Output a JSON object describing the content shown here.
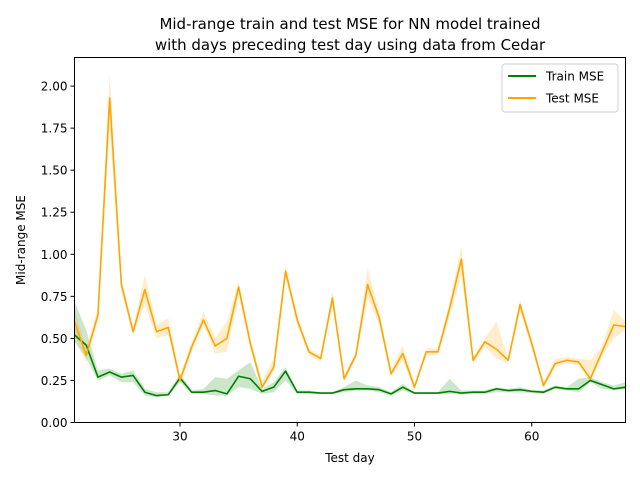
{
  "chart_data": {
    "type": "line",
    "title_line1": "Mid-range train and test MSE for NN model trained",
    "title_line2": "with days preceding test day using data from Cedar",
    "xlabel": "Test day",
    "ylabel": "Mid-range MSE",
    "xlim": [
      21,
      68
    ],
    "ylim": [
      0,
      2.17
    ],
    "xticks": [
      30,
      40,
      50,
      60
    ],
    "yticks": [
      0.0,
      0.25,
      0.5,
      0.75,
      1.0,
      1.25,
      1.5,
      1.75,
      2.0
    ],
    "ytick_labels": [
      "0.00",
      "0.25",
      "0.50",
      "0.75",
      "1.00",
      "1.25",
      "1.50",
      "1.75",
      "2.00"
    ],
    "legend_position": "top-right",
    "x": [
      21,
      22,
      23,
      24,
      25,
      26,
      27,
      28,
      29,
      30,
      31,
      32,
      33,
      34,
      35,
      36,
      37,
      38,
      39,
      40,
      41,
      42,
      43,
      44,
      45,
      46,
      47,
      48,
      49,
      50,
      51,
      52,
      53,
      54,
      55,
      56,
      57,
      58,
      59,
      60,
      61,
      62,
      63,
      64,
      65,
      66,
      67,
      68
    ],
    "series": [
      {
        "name": "Train MSE",
        "color": "#008000",
        "values": [
          0.52,
          0.46,
          0.27,
          0.3,
          0.27,
          0.28,
          0.18,
          0.16,
          0.165,
          0.265,
          0.18,
          0.18,
          0.19,
          0.17,
          0.275,
          0.26,
          0.185,
          0.21,
          0.305,
          0.18,
          0.18,
          0.175,
          0.175,
          0.195,
          0.2,
          0.2,
          0.195,
          0.17,
          0.21,
          0.175,
          0.175,
          0.175,
          0.185,
          0.175,
          0.18,
          0.18,
          0.2,
          0.19,
          0.195,
          0.185,
          0.18,
          0.21,
          0.2,
          0.2,
          0.25,
          0.225,
          0.2,
          0.21
        ],
        "lower": [
          0.48,
          0.38,
          0.25,
          0.28,
          0.24,
          0.24,
          0.16,
          0.15,
          0.16,
          0.24,
          0.17,
          0.17,
          0.16,
          0.16,
          0.21,
          0.2,
          0.17,
          0.18,
          0.25,
          0.17,
          0.17,
          0.17,
          0.17,
          0.18,
          0.19,
          0.19,
          0.18,
          0.16,
          0.19,
          0.17,
          0.17,
          0.17,
          0.17,
          0.17,
          0.17,
          0.17,
          0.18,
          0.18,
          0.18,
          0.175,
          0.17,
          0.2,
          0.19,
          0.18,
          0.24,
          0.2,
          0.19,
          0.2
        ],
        "upper": [
          0.72,
          0.55,
          0.31,
          0.32,
          0.29,
          0.31,
          0.2,
          0.18,
          0.18,
          0.29,
          0.19,
          0.2,
          0.27,
          0.26,
          0.31,
          0.36,
          0.2,
          0.24,
          0.33,
          0.19,
          0.19,
          0.18,
          0.18,
          0.21,
          0.25,
          0.22,
          0.21,
          0.18,
          0.23,
          0.18,
          0.18,
          0.18,
          0.26,
          0.19,
          0.19,
          0.19,
          0.21,
          0.2,
          0.21,
          0.195,
          0.19,
          0.22,
          0.21,
          0.26,
          0.27,
          0.24,
          0.22,
          0.24
        ]
      },
      {
        "name": "Test MSE",
        "color": "#ffa500",
        "values": [
          0.6,
          0.4,
          0.64,
          1.93,
          0.82,
          0.54,
          0.79,
          0.54,
          0.565,
          0.25,
          0.45,
          0.61,
          0.455,
          0.5,
          0.805,
          0.47,
          0.21,
          0.33,
          0.9,
          0.61,
          0.42,
          0.38,
          0.74,
          0.26,
          0.4,
          0.82,
          0.62,
          0.29,
          0.41,
          0.21,
          0.42,
          0.42,
          0.68,
          0.97,
          0.37,
          0.48,
          0.435,
          0.37,
          0.7,
          0.47,
          0.22,
          0.35,
          0.37,
          0.36,
          0.26,
          0.42,
          0.58,
          0.57
        ],
        "lower": [
          0.52,
          0.36,
          0.6,
          1.75,
          0.78,
          0.52,
          0.7,
          0.5,
          0.52,
          0.23,
          0.42,
          0.58,
          0.41,
          0.42,
          0.75,
          0.44,
          0.2,
          0.3,
          0.86,
          0.58,
          0.4,
          0.36,
          0.7,
          0.24,
          0.38,
          0.74,
          0.58,
          0.27,
          0.37,
          0.19,
          0.4,
          0.4,
          0.63,
          0.88,
          0.35,
          0.45,
          0.38,
          0.35,
          0.66,
          0.44,
          0.2,
          0.33,
          0.35,
          0.34,
          0.24,
          0.39,
          0.5,
          0.55
        ],
        "upper": [
          0.68,
          0.44,
          0.68,
          2.07,
          0.86,
          0.56,
          0.88,
          0.58,
          0.62,
          0.28,
          0.48,
          0.66,
          0.5,
          0.6,
          0.84,
          0.5,
          0.25,
          0.38,
          0.93,
          0.64,
          0.44,
          0.4,
          0.78,
          0.28,
          0.42,
          0.92,
          0.66,
          0.31,
          0.46,
          0.23,
          0.44,
          0.44,
          0.72,
          1.05,
          0.39,
          0.5,
          0.6,
          0.38,
          0.73,
          0.5,
          0.24,
          0.38,
          0.39,
          0.38,
          0.37,
          0.45,
          0.67,
          0.6
        ]
      }
    ]
  }
}
